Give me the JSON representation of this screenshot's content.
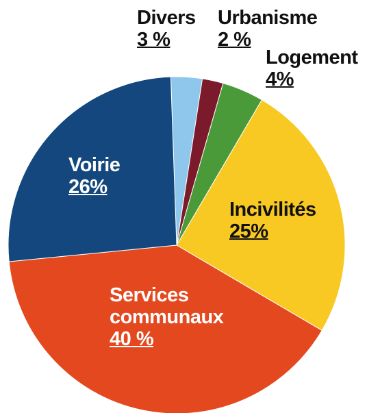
{
  "chart_data": {
    "type": "pie",
    "categories": [
      "Divers",
      "Urbanisme",
      "Logement",
      "Incivilités",
      "Services communaux",
      "Voirie"
    ],
    "values": [
      3,
      2,
      4,
      25,
      40,
      26
    ],
    "value_labels": [
      "3 %",
      "2 %",
      "4%",
      "25%",
      "40 %",
      "26%"
    ],
    "colors": [
      "#8ec6ec",
      "#7a1a2a",
      "#4a9a3a",
      "#f8c823",
      "#e4481f",
      "#14477e"
    ]
  }
}
